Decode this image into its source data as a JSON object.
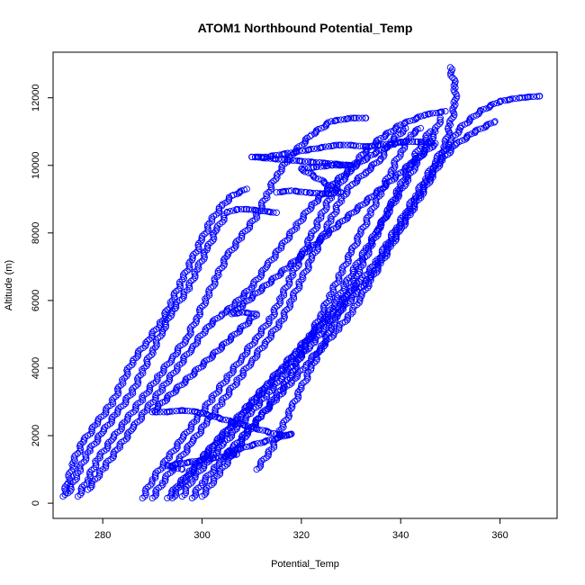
{
  "chart_data": {
    "type": "scatter",
    "title": "ATOM1 Northbound Potential_Temp",
    "xlabel": "Potential_Temp",
    "ylabel": "Altitude (m)",
    "xlim": [
      270,
      371.5
    ],
    "ylim": [
      -450,
      13350
    ],
    "xticks": [
      280,
      300,
      320,
      340,
      360
    ],
    "yticks": [
      0,
      2000,
      4000,
      6000,
      8000,
      10000,
      12000
    ],
    "marker": "open-circle",
    "color": "#0000ff",
    "grid": false,
    "series": [
      {
        "points": [
          [
            272,
            200
          ],
          [
            273,
            600
          ],
          [
            274,
            1200
          ],
          [
            276,
            1800
          ],
          [
            279,
            2400
          ],
          [
            282,
            3000
          ],
          [
            284,
            3600
          ],
          [
            286,
            4200
          ],
          [
            289,
            4800
          ],
          [
            292,
            5400
          ],
          [
            294,
            6000
          ],
          [
            296,
            6600
          ],
          [
            298,
            7200
          ],
          [
            300,
            7800
          ],
          [
            302,
            8400
          ],
          [
            304,
            8800
          ],
          [
            306,
            9100
          ],
          [
            309,
            9300
          ]
        ]
      },
      {
        "points": [
          [
            273,
            300
          ],
          [
            275,
            900
          ],
          [
            277,
            1500
          ],
          [
            280,
            2100
          ],
          [
            283,
            2700
          ],
          [
            286,
            3300
          ],
          [
            288,
            3900
          ],
          [
            290,
            4500
          ],
          [
            292,
            5100
          ],
          [
            294,
            5700
          ],
          [
            297,
            6300
          ],
          [
            299,
            6900
          ],
          [
            301,
            7500
          ],
          [
            303,
            8100
          ],
          [
            305,
            8600
          ],
          [
            307,
            8700
          ],
          [
            309,
            8700
          ],
          [
            312,
            8650
          ],
          [
            315,
            8600
          ]
        ]
      },
      {
        "points": [
          [
            275,
            200
          ],
          [
            277,
            700
          ],
          [
            279,
            1300
          ],
          [
            282,
            1900
          ],
          [
            285,
            2500
          ],
          [
            288,
            3100
          ],
          [
            291,
            3700
          ],
          [
            294,
            4300
          ],
          [
            297,
            4900
          ],
          [
            299,
            5500
          ],
          [
            301,
            6100
          ],
          [
            303,
            6700
          ],
          [
            305,
            7300
          ],
          [
            308,
            7900
          ],
          [
            311,
            8500
          ],
          [
            313,
            9100
          ],
          [
            315,
            9700
          ],
          [
            318,
            10300
          ],
          [
            322,
            10900
          ],
          [
            326,
            11300
          ],
          [
            330,
            11400
          ],
          [
            333,
            11400
          ]
        ]
      },
      {
        "points": [
          [
            277,
            400
          ],
          [
            280,
            1000
          ],
          [
            283,
            1600
          ],
          [
            286,
            2200
          ],
          [
            289,
            2800
          ],
          [
            292,
            3400
          ],
          [
            295,
            4000
          ],
          [
            298,
            4600
          ],
          [
            301,
            5200
          ],
          [
            304,
            5600
          ],
          [
            306,
            5800
          ],
          [
            310,
            6400
          ],
          [
            313,
            7000
          ],
          [
            316,
            7600
          ],
          [
            319,
            8200
          ],
          [
            322,
            8800
          ],
          [
            326,
            9400
          ],
          [
            330,
            9900
          ],
          [
            334,
            10300
          ],
          [
            338,
            10600
          ],
          [
            340,
            10700
          ]
        ]
      },
      {
        "points": [
          [
            288,
            150
          ],
          [
            290,
            700
          ],
          [
            293,
            1300
          ],
          [
            296,
            1900
          ],
          [
            299,
            2500
          ],
          [
            302,
            3100
          ],
          [
            305,
            3700
          ],
          [
            308,
            4300
          ],
          [
            311,
            4900
          ],
          [
            314,
            5500
          ],
          [
            316,
            6100
          ],
          [
            318,
            6700
          ],
          [
            320,
            7300
          ],
          [
            322,
            7900
          ],
          [
            324,
            8500
          ],
          [
            326,
            9100
          ],
          [
            329,
            9700
          ],
          [
            332,
            10300
          ],
          [
            336,
            10800
          ],
          [
            340,
            11200
          ],
          [
            345,
            11500
          ],
          [
            349,
            11600
          ]
        ]
      },
      {
        "points": [
          [
            290,
            150
          ],
          [
            292,
            600
          ],
          [
            295,
            1200
          ],
          [
            298,
            1800
          ],
          [
            301,
            2400
          ],
          [
            304,
            3000
          ],
          [
            307,
            3600
          ],
          [
            310,
            4200
          ],
          [
            313,
            4800
          ],
          [
            316,
            5400
          ],
          [
            318,
            6000
          ],
          [
            320,
            6600
          ],
          [
            322,
            7200
          ],
          [
            324,
            7800
          ],
          [
            326,
            8400
          ],
          [
            328,
            9000
          ],
          [
            330,
            9400
          ],
          [
            333,
            9800
          ],
          [
            336,
            10200
          ],
          [
            338,
            10700
          ],
          [
            341,
            11100
          ]
        ]
      },
      {
        "points": [
          [
            293,
            150
          ],
          [
            295,
            500
          ],
          [
            298,
            1000
          ],
          [
            301,
            1500
          ],
          [
            304,
            2000
          ],
          [
            307,
            2500
          ],
          [
            310,
            3000
          ],
          [
            313,
            3500
          ],
          [
            316,
            4000
          ],
          [
            319,
            4500
          ],
          [
            322,
            5000
          ],
          [
            325,
            5500
          ],
          [
            327,
            6000
          ],
          [
            329,
            6500
          ],
          [
            331,
            7000
          ],
          [
            333,
            7500
          ],
          [
            335,
            8000
          ],
          [
            337,
            8500
          ],
          [
            339,
            9000
          ],
          [
            341,
            9500
          ],
          [
            343,
            10000
          ],
          [
            345,
            10500
          ],
          [
            347,
            11000
          ],
          [
            348,
            11400
          ]
        ]
      },
      {
        "points": [
          [
            294,
            150
          ],
          [
            296,
            600
          ],
          [
            299,
            1100
          ],
          [
            302,
            1600
          ],
          [
            305,
            2100
          ],
          [
            308,
            2600
          ],
          [
            311,
            3100
          ],
          [
            314,
            3600
          ],
          [
            317,
            4100
          ],
          [
            320,
            4600
          ],
          [
            323,
            5100
          ],
          [
            326,
            5600
          ],
          [
            329,
            6100
          ],
          [
            332,
            6600
          ],
          [
            335,
            7100
          ],
          [
            337,
            7600
          ],
          [
            339,
            8100
          ],
          [
            341,
            8600
          ],
          [
            343,
            9100
          ],
          [
            345,
            9600
          ],
          [
            347,
            10100
          ],
          [
            349,
            10600
          ],
          [
            350,
            11200
          ],
          [
            351,
            11800
          ],
          [
            351,
            12300
          ],
          [
            350,
            12900
          ]
        ]
      },
      {
        "points": [
          [
            296,
            200
          ],
          [
            298,
            700
          ],
          [
            301,
            1200
          ],
          [
            304,
            1700
          ],
          [
            307,
            2200
          ],
          [
            310,
            2700
          ],
          [
            313,
            3200
          ],
          [
            316,
            3700
          ],
          [
            319,
            4200
          ],
          [
            322,
            4700
          ],
          [
            325,
            5200
          ],
          [
            328,
            5700
          ],
          [
            331,
            6200
          ],
          [
            334,
            6700
          ],
          [
            336,
            7200
          ],
          [
            338,
            7700
          ],
          [
            340,
            8200
          ],
          [
            342,
            8700
          ],
          [
            344,
            9200
          ],
          [
            346,
            9700
          ],
          [
            348,
            10200
          ],
          [
            350,
            10700
          ],
          [
            352,
            11100
          ],
          [
            356,
            11600
          ],
          [
            360,
            11900
          ],
          [
            364,
            12000
          ],
          [
            368,
            12050
          ]
        ]
      },
      {
        "points": [
          [
            298,
            150
          ],
          [
            300,
            600
          ],
          [
            303,
            1100
          ],
          [
            306,
            1600
          ],
          [
            309,
            2100
          ],
          [
            312,
            2600
          ],
          [
            315,
            3100
          ],
          [
            318,
            3600
          ],
          [
            321,
            4100
          ],
          [
            324,
            4600
          ],
          [
            327,
            5100
          ],
          [
            330,
            5600
          ],
          [
            332,
            6100
          ],
          [
            334,
            6600
          ],
          [
            336,
            7100
          ],
          [
            338,
            7600
          ],
          [
            340,
            8100
          ],
          [
            342,
            8600
          ],
          [
            344,
            9100
          ],
          [
            346,
            9600
          ],
          [
            348,
            10100
          ],
          [
            351,
            10600
          ],
          [
            355,
            11000
          ],
          [
            359,
            11300
          ]
        ]
      },
      {
        "points": [
          [
            300,
            200
          ],
          [
            303,
            800
          ],
          [
            306,
            1400
          ],
          [
            309,
            2000
          ],
          [
            312,
            2600
          ],
          [
            315,
            3200
          ],
          [
            318,
            3800
          ],
          [
            320,
            4400
          ],
          [
            322,
            5000
          ],
          [
            324,
            5600
          ],
          [
            326,
            6200
          ],
          [
            328,
            6800
          ],
          [
            330,
            7400
          ],
          [
            332,
            8000
          ],
          [
            334,
            8600
          ],
          [
            336,
            9200
          ],
          [
            338,
            9800
          ],
          [
            340,
            10400
          ],
          [
            342,
            10900
          ],
          [
            344,
            11100
          ]
        ]
      },
      {
        "points": [
          [
            311,
            1000
          ],
          [
            314,
            1600
          ],
          [
            316,
            2200
          ],
          [
            318,
            2800
          ],
          [
            320,
            3400
          ],
          [
            322,
            4000
          ],
          [
            324,
            4600
          ],
          [
            326,
            5200
          ],
          [
            328,
            5800
          ],
          [
            330,
            6400
          ],
          [
            332,
            7000
          ],
          [
            334,
            7600
          ],
          [
            336,
            8200
          ],
          [
            338,
            8800
          ],
          [
            340,
            9400
          ],
          [
            342,
            10000
          ],
          [
            344,
            10600
          ],
          [
            346,
            11000
          ]
        ]
      },
      {
        "points": [
          [
            315,
            9200
          ],
          [
            318,
            9250
          ],
          [
            321,
            9200
          ],
          [
            325,
            9150
          ],
          [
            328,
            9200
          ],
          [
            320,
            9900
          ],
          [
            323,
            9950
          ],
          [
            326,
            10000
          ],
          [
            330,
            10000
          ],
          [
            310,
            10250
          ],
          [
            313,
            10250
          ],
          [
            327,
            10600
          ],
          [
            330,
            10600
          ],
          [
            333,
            10550
          ],
          [
            341,
            10700
          ],
          [
            344,
            10700
          ],
          [
            347,
            10650
          ],
          [
            306,
            5600
          ],
          [
            308,
            5650
          ],
          [
            311,
            5600
          ],
          [
            290,
            2700
          ],
          [
            293,
            2700
          ],
          [
            296,
            2750
          ],
          [
            299,
            2700
          ],
          [
            316,
            2000
          ],
          [
            318,
            2050
          ],
          [
            305,
            1500
          ],
          [
            307,
            1450
          ],
          [
            293,
            1100
          ],
          [
            296,
            1000
          ]
        ]
      }
    ]
  }
}
